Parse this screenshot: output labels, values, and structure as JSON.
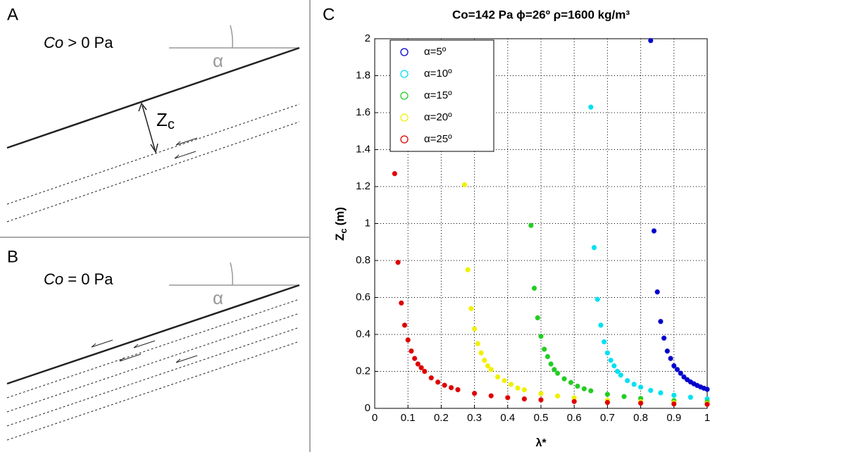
{
  "panels": [
    {
      "letter": "A",
      "label_italic": "Co",
      "label_rest": "> 0 Pa",
      "angle": "α",
      "depth": "Z",
      "depth_sub": "c"
    },
    {
      "letter": "B",
      "label_italic": "Co",
      "label_rest": "= 0 Pa",
      "angle": "α"
    }
  ],
  "chart_data": {
    "type": "scatter",
    "letter": "C",
    "title": "Co=142 Pa  ϕ=26º  ρ=1600 kg/m³",
    "xlabel": "λ*",
    "ylabel": "Z",
    "ylabel_sub": "c",
    "ylabel_unit": "(m)",
    "xlim": [
      0,
      1
    ],
    "ylim": [
      0,
      2
    ],
    "xticks": [
      0,
      0.1,
      0.2,
      0.3,
      0.4,
      0.5,
      0.6,
      0.7,
      0.8,
      0.9,
      1
    ],
    "yticks": [
      0,
      0.2,
      0.4,
      0.6,
      0.8,
      1,
      1.2,
      1.4,
      1.6,
      1.8,
      2
    ],
    "grid": true,
    "legend": "upper-left",
    "series": [
      {
        "name": "α=5º",
        "color": "#0000cc",
        "x": [
          0.83,
          0.84,
          0.85,
          0.86,
          0.87,
          0.88,
          0.89,
          0.9,
          0.91,
          0.92,
          0.93,
          0.94,
          0.95,
          0.96,
          0.97,
          0.98,
          0.99,
          1
        ],
        "values": [
          1.99,
          0.96,
          0.63,
          0.47,
          0.38,
          0.31,
          0.27,
          0.23,
          0.21,
          0.19,
          0.17,
          0.155,
          0.143,
          0.133,
          0.124,
          0.116,
          0.109,
          0.103
        ]
      },
      {
        "name": "α=10º",
        "color": "#00e0f0",
        "x": [
          0.65,
          0.66,
          0.67,
          0.68,
          0.69,
          0.7,
          0.71,
          0.72,
          0.73,
          0.74,
          0.76,
          0.78,
          0.8,
          0.83,
          0.86,
          0.9,
          0.95,
          1
        ],
        "values": [
          1.63,
          0.87,
          0.59,
          0.45,
          0.36,
          0.3,
          0.26,
          0.23,
          0.2,
          0.18,
          0.15,
          0.13,
          0.115,
          0.097,
          0.084,
          0.071,
          0.06,
          0.051
        ]
      },
      {
        "name": "α=15º",
        "color": "#22cc22",
        "x": [
          0.47,
          0.48,
          0.49,
          0.5,
          0.51,
          0.52,
          0.53,
          0.54,
          0.55,
          0.57,
          0.59,
          0.61,
          0.63,
          0.65,
          0.7,
          0.75,
          0.8,
          0.9,
          1
        ],
        "values": [
          0.99,
          0.65,
          0.49,
          0.39,
          0.32,
          0.28,
          0.24,
          0.21,
          0.19,
          0.16,
          0.14,
          0.12,
          0.106,
          0.095,
          0.076,
          0.064,
          0.054,
          0.042,
          0.035
        ]
      },
      {
        "name": "α=20º",
        "color": "#f0f000",
        "x": [
          0.27,
          0.28,
          0.29,
          0.3,
          0.31,
          0.32,
          0.33,
          0.34,
          0.35,
          0.37,
          0.39,
          0.41,
          0.43,
          0.45,
          0.5,
          0.55,
          0.6,
          0.7,
          0.8,
          0.9,
          1
        ],
        "values": [
          1.21,
          0.75,
          0.54,
          0.43,
          0.35,
          0.3,
          0.26,
          0.23,
          0.21,
          0.17,
          0.15,
          0.13,
          0.11,
          0.1,
          0.08,
          0.067,
          0.057,
          0.044,
          0.036,
          0.031,
          0.027
        ]
      },
      {
        "name": "α=25º",
        "color": "#dd0000",
        "x": [
          0.06,
          0.07,
          0.08,
          0.09,
          0.1,
          0.11,
          0.12,
          0.13,
          0.14,
          0.15,
          0.17,
          0.19,
          0.21,
          0.23,
          0.25,
          0.3,
          0.35,
          0.4,
          0.45,
          0.5,
          0.6,
          0.7,
          0.8,
          0.9,
          1
        ],
        "values": [
          1.27,
          0.79,
          0.57,
          0.45,
          0.37,
          0.31,
          0.27,
          0.24,
          0.22,
          0.2,
          0.165,
          0.142,
          0.125,
          0.112,
          0.101,
          0.081,
          0.068,
          0.058,
          0.051,
          0.046,
          0.037,
          0.032,
          0.028,
          0.024,
          0.022
        ]
      }
    ]
  }
}
